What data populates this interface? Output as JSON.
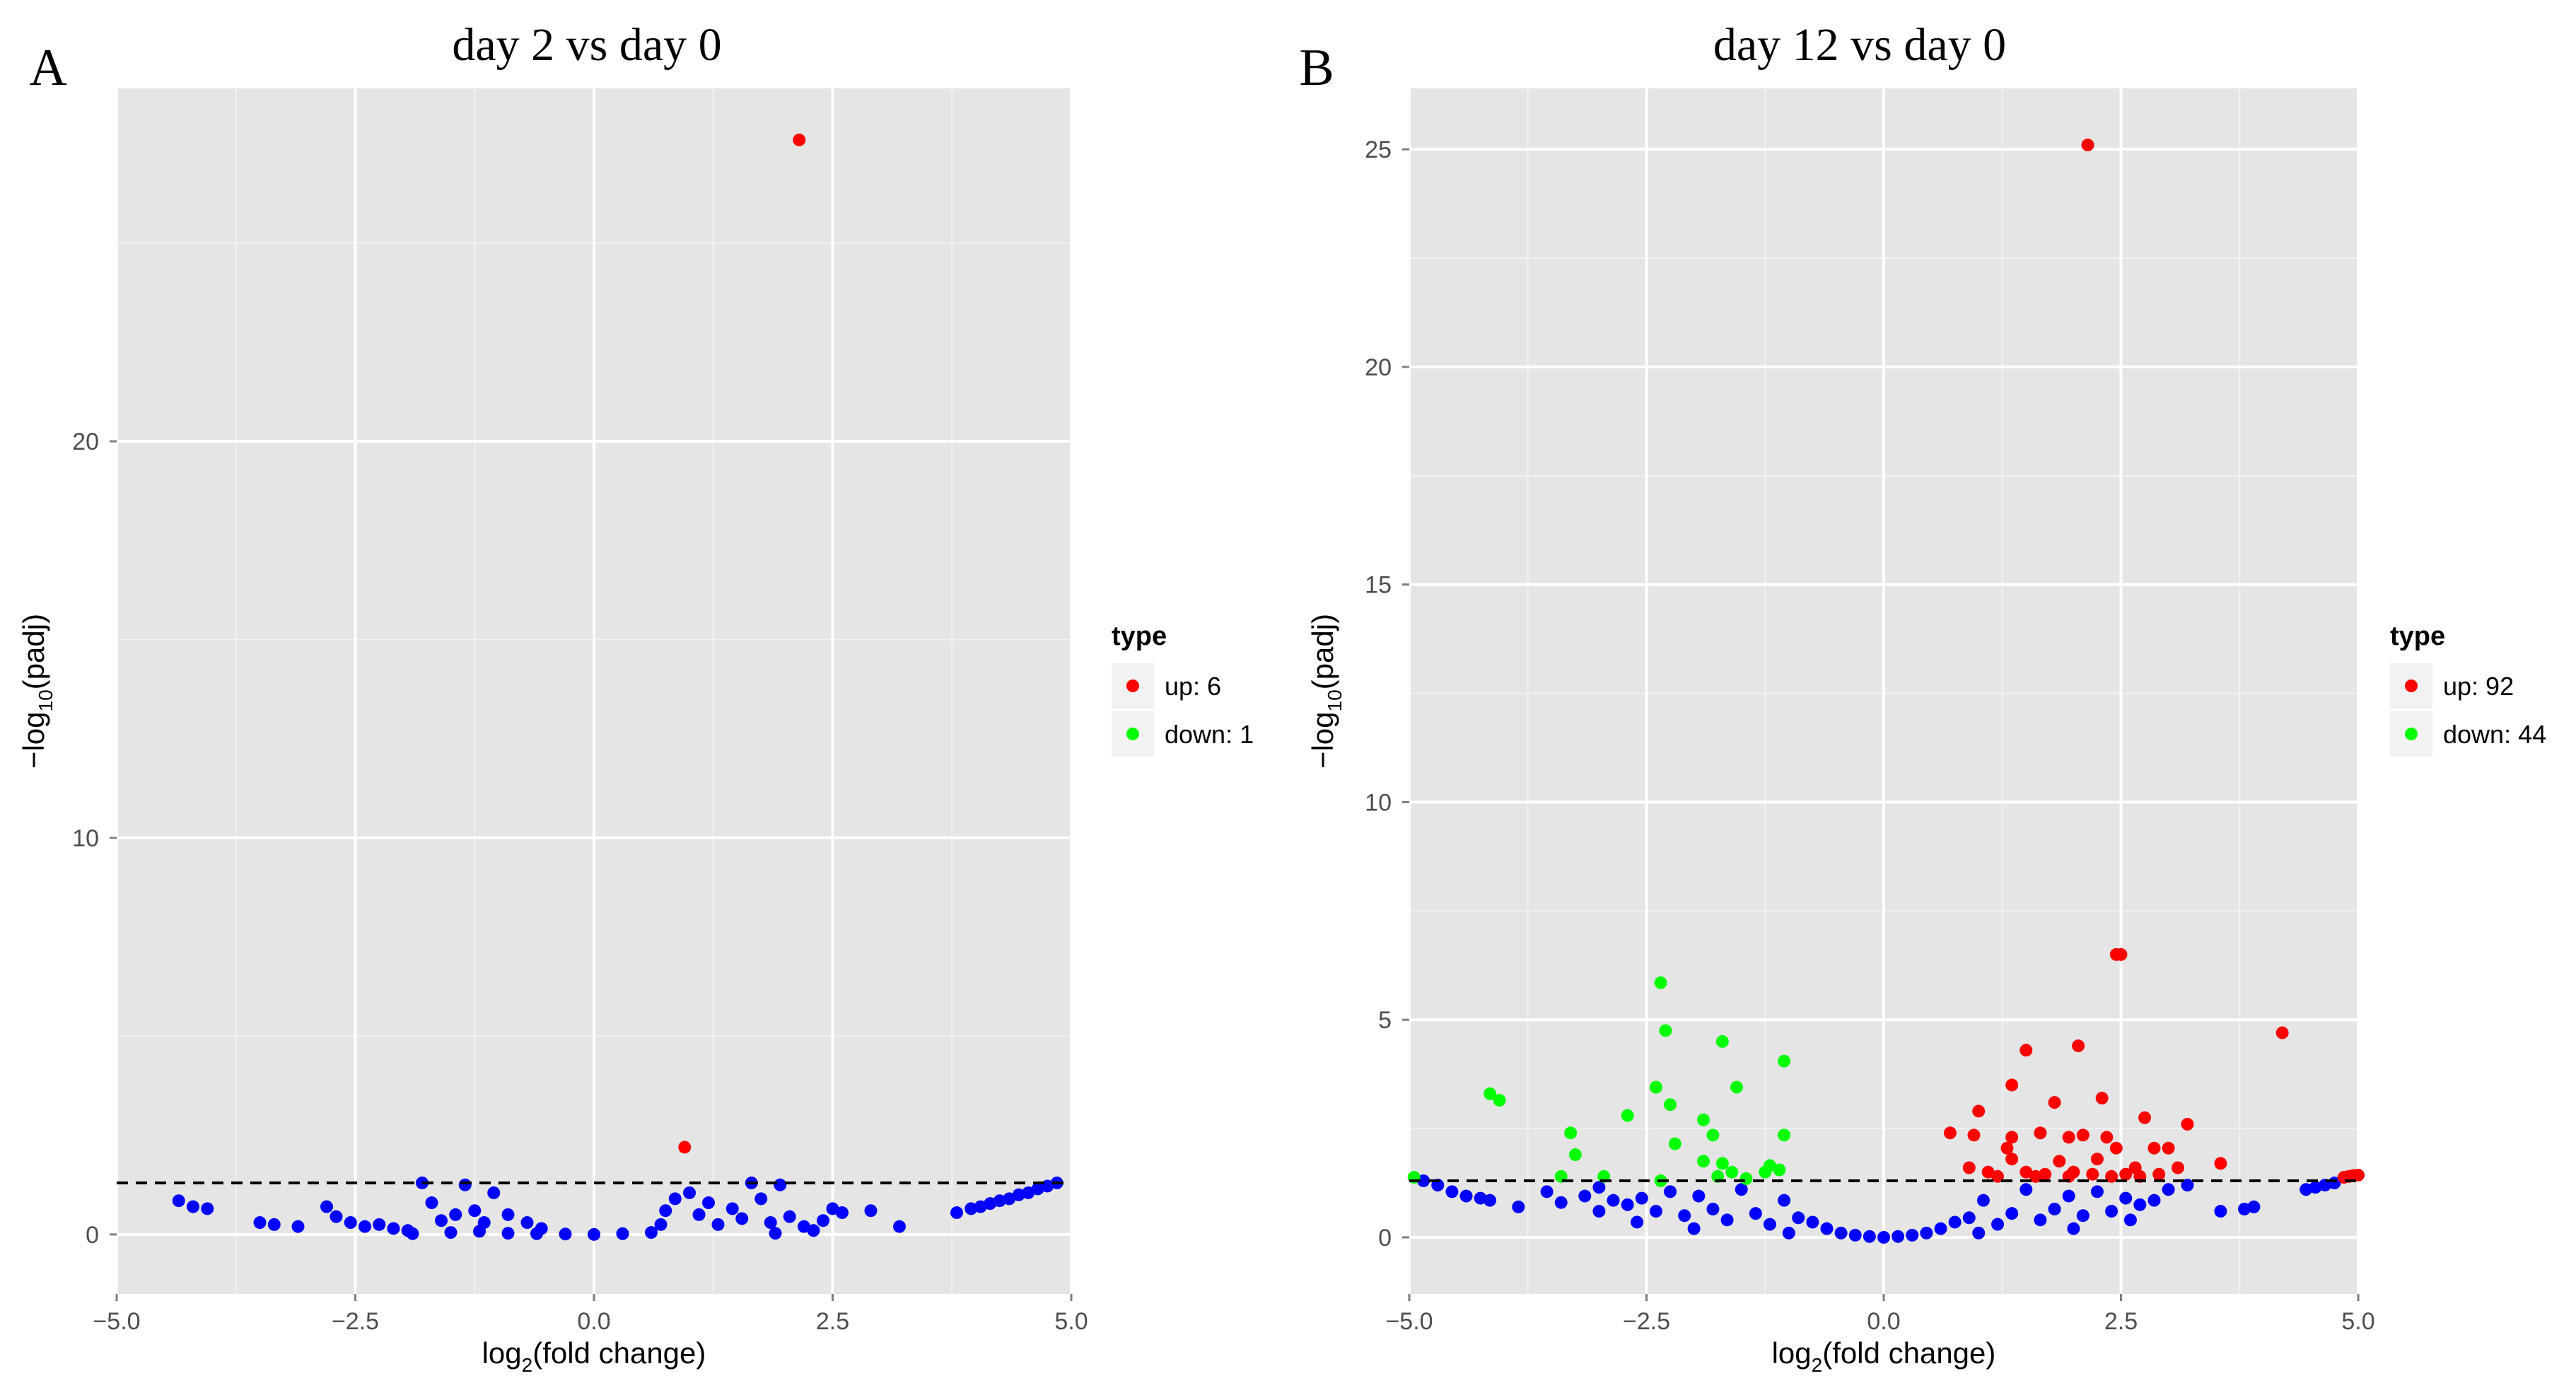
{
  "chart_data": [
    {
      "type": "scatter",
      "panel_label": "A",
      "title": "day 2 vs day 0",
      "xlabel_main": "log",
      "xlabel_sub": "2",
      "xlabel_rest": "(fold change)",
      "ylabel_main": "−log",
      "ylabel_sub": "10",
      "ylabel_rest": "(padj)",
      "xlim": [
        -5.0,
        5.0
      ],
      "ylim": [
        -1.5,
        28.9
      ],
      "x_ticks": [
        -5.0,
        -2.5,
        0.0,
        2.5,
        5.0
      ],
      "x_tick_labels": [
        "−5.0",
        "−2.5",
        "0.0",
        "2.5",
        "5.0"
      ],
      "y_ticks": [
        0,
        10,
        20
      ],
      "y_tick_labels": [
        "0",
        "10",
        "20"
      ],
      "threshold": 1.3,
      "legend": {
        "title": "type",
        "entries": [
          {
            "label": "up: 6",
            "color": "#ff0000"
          },
          {
            "label": "down: 1",
            "color": "#00ff00"
          }
        ]
      },
      "colors": {
        "up": "#ff0000",
        "down": "#00ff00",
        "normal": "#0000ff"
      },
      "series": [
        {
          "name": "up",
          "points": [
            [
              2.15,
              27.6
            ],
            [
              0.95,
              2.2
            ]
          ]
        },
        {
          "name": "normal",
          "points": [
            [
              -4.35,
              0.85
            ],
            [
              -4.2,
              0.7
            ],
            [
              -4.05,
              0.65
            ],
            [
              -3.5,
              0.3
            ],
            [
              -3.35,
              0.25
            ],
            [
              -3.1,
              0.2
            ],
            [
              -2.8,
              0.7
            ],
            [
              -2.7,
              0.45
            ],
            [
              -2.55,
              0.3
            ],
            [
              -2.4,
              0.2
            ],
            [
              -2.25,
              0.25
            ],
            [
              -2.1,
              0.15
            ],
            [
              -1.95,
              0.1
            ],
            [
              -1.8,
              1.3
            ],
            [
              -1.7,
              0.8
            ],
            [
              -1.6,
              0.35
            ],
            [
              -1.45,
              0.5
            ],
            [
              -1.35,
              1.25
            ],
            [
              -1.25,
              0.6
            ],
            [
              -1.15,
              0.3
            ],
            [
              -1.05,
              1.05
            ],
            [
              -0.9,
              0.5
            ],
            [
              -0.7,
              0.3
            ],
            [
              -0.55,
              0.15
            ],
            [
              -1.5,
              0.05
            ],
            [
              -1.2,
              0.08
            ],
            [
              -0.9,
              0.03
            ],
            [
              -0.6,
              0.02
            ],
            [
              -0.3,
              0.01
            ],
            [
              0.0,
              0.0
            ],
            [
              0.3,
              0.02
            ],
            [
              0.6,
              0.05
            ],
            [
              0.7,
              0.25
            ],
            [
              0.75,
              0.6
            ],
            [
              0.85,
              0.9
            ],
            [
              1.0,
              1.05
            ],
            [
              1.1,
              0.5
            ],
            [
              1.2,
              0.8
            ],
            [
              1.3,
              0.25
            ],
            [
              1.45,
              0.65
            ],
            [
              1.55,
              0.4
            ],
            [
              1.65,
              1.3
            ],
            [
              1.75,
              0.9
            ],
            [
              1.85,
              0.3
            ],
            [
              1.95,
              1.25
            ],
            [
              2.05,
              0.45
            ],
            [
              2.2,
              0.2
            ],
            [
              2.4,
              0.35
            ],
            [
              2.5,
              0.65
            ],
            [
              2.6,
              0.55
            ],
            [
              2.9,
              0.6
            ],
            [
              3.2,
              0.2
            ],
            [
              3.8,
              0.55
            ],
            [
              3.95,
              0.65
            ],
            [
              4.05,
              0.7
            ],
            [
              4.15,
              0.78
            ],
            [
              4.25,
              0.85
            ],
            [
              4.35,
              0.9
            ],
            [
              4.45,
              1.0
            ],
            [
              4.55,
              1.05
            ],
            [
              4.65,
              1.15
            ],
            [
              4.75,
              1.22
            ],
            [
              4.85,
              1.3
            ],
            [
              -1.9,
              0.02
            ],
            [
              1.9,
              0.03
            ],
            [
              2.3,
              0.1
            ]
          ]
        }
      ]
    },
    {
      "type": "scatter",
      "panel_label": "B",
      "title": "day 12 vs day 0",
      "xlabel_main": "log",
      "xlabel_sub": "2",
      "xlabel_rest": "(fold change)",
      "ylabel_main": "−log",
      "ylabel_sub": "10",
      "ylabel_rest": "(padj)",
      "xlim": [
        -5.0,
        5.0
      ],
      "ylim": [
        -1.3,
        26.4
      ],
      "x_ticks": [
        -5.0,
        -2.5,
        0.0,
        2.5,
        5.0
      ],
      "x_tick_labels": [
        "−5.0",
        "−2.5",
        "0.0",
        "2.5",
        "5.0"
      ],
      "y_ticks": [
        0,
        5,
        10,
        15,
        20,
        25
      ],
      "y_tick_labels": [
        "0",
        "5",
        "10",
        "15",
        "20",
        "25"
      ],
      "threshold": 1.3,
      "legend": {
        "title": "type",
        "entries": [
          {
            "label": "up: 92",
            "color": "#ff0000"
          },
          {
            "label": "down: 44",
            "color": "#00ff00"
          }
        ]
      },
      "colors": {
        "up": "#ff0000",
        "down": "#00ff00",
        "normal": "#0000ff"
      },
      "series": [
        {
          "name": "up",
          "points": [
            [
              2.15,
              25.1
            ],
            [
              2.45,
              6.5
            ],
            [
              2.5,
              6.5
            ],
            [
              4.2,
              4.7
            ],
            [
              1.5,
              4.3
            ],
            [
              2.05,
              4.4
            ],
            [
              1.35,
              3.5
            ],
            [
              2.3,
              3.2
            ],
            [
              1.8,
              3.1
            ],
            [
              1.0,
              2.9
            ],
            [
              2.75,
              2.75
            ],
            [
              3.2,
              2.6
            ],
            [
              0.7,
              2.4
            ],
            [
              0.95,
              2.35
            ],
            [
              1.35,
              2.3
            ],
            [
              1.65,
              2.4
            ],
            [
              1.95,
              2.3
            ],
            [
              2.1,
              2.35
            ],
            [
              2.35,
              2.3
            ],
            [
              1.3,
              2.05
            ],
            [
              2.45,
              2.05
            ],
            [
              2.85,
              2.05
            ],
            [
              3.0,
              2.05
            ],
            [
              3.55,
              1.7
            ],
            [
              1.35,
              1.8
            ],
            [
              1.85,
              1.75
            ],
            [
              2.25,
              1.8
            ],
            [
              2.65,
              1.6
            ],
            [
              3.1,
              1.6
            ],
            [
              0.9,
              1.6
            ],
            [
              1.1,
              1.5
            ],
            [
              1.5,
              1.5
            ],
            [
              1.7,
              1.45
            ],
            [
              2.0,
              1.5
            ],
            [
              2.2,
              1.45
            ],
            [
              2.55,
              1.45
            ],
            [
              2.7,
              1.4
            ],
            [
              2.9,
              1.45
            ],
            [
              1.2,
              1.4
            ],
            [
              1.6,
              1.4
            ],
            [
              1.95,
              1.4
            ],
            [
              2.4,
              1.4
            ],
            [
              4.85,
              1.38
            ],
            [
              4.9,
              1.4
            ],
            [
              4.95,
              1.42
            ],
            [
              5.0,
              1.43
            ]
          ]
        },
        {
          "name": "down",
          "points": [
            [
              -2.35,
              5.85
            ],
            [
              -2.3,
              4.75
            ],
            [
              -1.7,
              4.5
            ],
            [
              -1.05,
              4.05
            ],
            [
              -4.15,
              3.3
            ],
            [
              -4.05,
              3.15
            ],
            [
              -2.4,
              3.45
            ],
            [
              -1.55,
              3.45
            ],
            [
              -2.25,
              3.05
            ],
            [
              -2.7,
              2.8
            ],
            [
              -1.9,
              2.7
            ],
            [
              -3.3,
              2.4
            ],
            [
              -1.8,
              2.35
            ],
            [
              -2.2,
              2.15
            ],
            [
              -1.05,
              2.35
            ],
            [
              -3.25,
              1.9
            ],
            [
              -1.9,
              1.75
            ],
            [
              -1.7,
              1.7
            ],
            [
              -1.2,
              1.65
            ],
            [
              -1.6,
              1.5
            ],
            [
              -1.25,
              1.5
            ],
            [
              -1.1,
              1.55
            ],
            [
              -3.4,
              1.4
            ],
            [
              -2.95,
              1.4
            ],
            [
              -2.35,
              1.3
            ],
            [
              -1.75,
              1.4
            ],
            [
              -1.45,
              1.35
            ],
            [
              -4.95,
              1.38
            ]
          ]
        },
        {
          "name": "normal",
          "points": [
            [
              -4.85,
              1.3
            ],
            [
              -4.7,
              1.2
            ],
            [
              -4.55,
              1.05
            ],
            [
              -4.4,
              0.95
            ],
            [
              -4.25,
              0.9
            ],
            [
              -4.15,
              0.85
            ],
            [
              -3.85,
              0.7
            ],
            [
              -3.55,
              1.05
            ],
            [
              -3.4,
              0.8
            ],
            [
              -3.15,
              0.95
            ],
            [
              -3.0,
              1.15
            ],
            [
              -2.85,
              0.85
            ],
            [
              -2.7,
              0.75
            ],
            [
              -2.55,
              0.9
            ],
            [
              -2.4,
              0.6
            ],
            [
              -2.25,
              1.05
            ],
            [
              -2.1,
              0.5
            ],
            [
              -1.95,
              0.95
            ],
            [
              -1.8,
              0.65
            ],
            [
              -1.65,
              0.4
            ],
            [
              -1.5,
              1.1
            ],
            [
              -1.35,
              0.55
            ],
            [
              -1.2,
              0.3
            ],
            [
              -1.05,
              0.85
            ],
            [
              -0.9,
              0.45
            ],
            [
              -0.75,
              0.35
            ],
            [
              -0.6,
              0.2
            ],
            [
              -0.45,
              0.1
            ],
            [
              -0.3,
              0.05
            ],
            [
              -0.15,
              0.02
            ],
            [
              0.0,
              0.0
            ],
            [
              0.15,
              0.02
            ],
            [
              0.3,
              0.05
            ],
            [
              0.45,
              0.1
            ],
            [
              0.6,
              0.2
            ],
            [
              0.75,
              0.35
            ],
            [
              0.9,
              0.45
            ],
            [
              1.05,
              0.85
            ],
            [
              1.2,
              0.3
            ],
            [
              1.35,
              0.55
            ],
            [
              1.5,
              1.1
            ],
            [
              1.65,
              0.4
            ],
            [
              1.8,
              0.65
            ],
            [
              1.95,
              0.95
            ],
            [
              2.1,
              0.5
            ],
            [
              2.25,
              1.05
            ],
            [
              2.4,
              0.6
            ],
            [
              2.55,
              0.9
            ],
            [
              2.7,
              0.75
            ],
            [
              2.85,
              0.85
            ],
            [
              3.0,
              1.1
            ],
            [
              3.55,
              0.6
            ],
            [
              3.8,
              0.65
            ],
            [
              3.9,
              0.7
            ],
            [
              4.45,
              1.1
            ],
            [
              4.55,
              1.15
            ],
            [
              4.65,
              1.2
            ],
            [
              4.75,
              1.25
            ],
            [
              -2.0,
              0.2
            ],
            [
              -1.0,
              0.1
            ],
            [
              1.0,
              0.1
            ],
            [
              2.0,
              0.2
            ],
            [
              -3.0,
              0.6
            ],
            [
              3.2,
              1.2
            ],
            [
              -2.6,
              0.35
            ],
            [
              2.6,
              0.4
            ]
          ]
        }
      ]
    }
  ]
}
